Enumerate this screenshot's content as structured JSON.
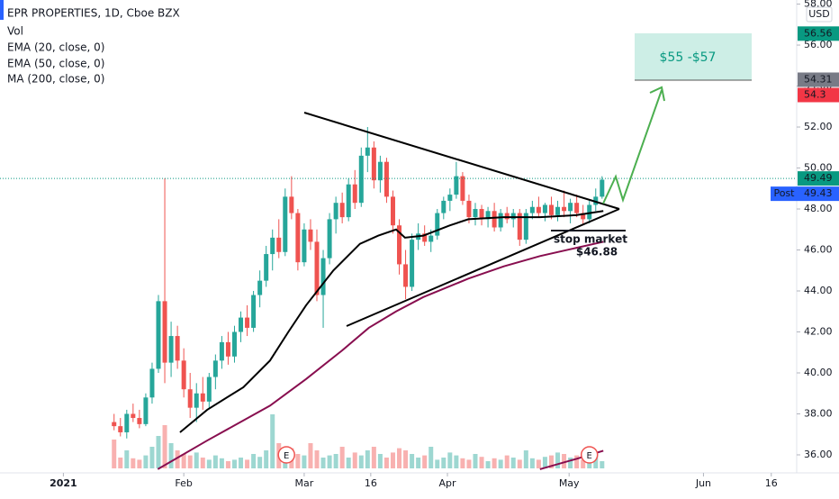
{
  "chart_data": {
    "type": "candlestick",
    "title": "EPR PROPERTIES, 1D, Cboe BZX",
    "volume_label": "Vol",
    "currency": "USD",
    "up_color": "#26a69a",
    "down_color": "#ef5350",
    "xlim": [
      0,
      125
    ],
    "xticks": [
      {
        "value": 10,
        "label": "2021"
      },
      {
        "value": 29,
        "label": "Feb"
      },
      {
        "value": 48,
        "label": "Mar"
      },
      {
        "value": 58.5,
        "label": "16"
      },
      {
        "value": 70.6,
        "label": "Apr"
      },
      {
        "value": 89.8,
        "label": "May"
      },
      {
        "value": 111,
        "label": "Jun"
      },
      {
        "value": 121.7,
        "label": "16"
      }
    ],
    "ylim": [
      35.12,
      58.2
    ],
    "yticks": [
      {
        "value": 36,
        "label": "36.00"
      },
      {
        "value": 38,
        "label": "38.00"
      },
      {
        "value": 40,
        "label": "40.00"
      },
      {
        "value": 42,
        "label": "42.00"
      },
      {
        "value": 44,
        "label": "44.00"
      },
      {
        "value": 46,
        "label": "46.00"
      },
      {
        "value": 48,
        "label": "48.00"
      },
      {
        "value": 50,
        "label": "50.00"
      },
      {
        "value": 52,
        "label": "52.00"
      },
      {
        "value": 54,
        "label": "54.00"
      },
      {
        "value": 56,
        "label": "56.00"
      },
      {
        "value": 58,
        "label": "58.00"
      }
    ],
    "x": [
      18,
      19,
      20,
      21,
      22,
      23,
      24,
      25,
      26,
      27,
      28,
      29,
      30,
      31,
      32,
      33,
      34,
      35,
      36,
      37,
      38,
      39,
      40,
      41,
      42,
      43,
      44,
      45,
      46,
      47,
      48,
      49,
      50,
      51,
      52,
      53,
      54,
      55,
      56,
      57,
      58,
      59,
      60,
      61,
      62,
      63,
      64,
      65,
      66,
      67,
      68,
      69,
      70,
      71,
      72,
      73,
      74,
      75,
      76,
      77,
      78,
      79,
      80,
      81,
      82,
      83,
      84,
      85,
      86,
      87,
      88,
      89,
      90,
      91,
      92,
      93,
      94,
      95
    ],
    "ohlc": [
      [
        37.6,
        38.0,
        37.2,
        37.4
      ],
      [
        37.4,
        37.8,
        36.9,
        37.1
      ],
      [
        37.1,
        38.2,
        36.8,
        38.0
      ],
      [
        38.0,
        38.5,
        37.6,
        37.8
      ],
      [
        37.8,
        38.2,
        37.3,
        37.5
      ],
      [
        37.5,
        39.0,
        37.4,
        38.8
      ],
      [
        38.8,
        40.5,
        38.5,
        40.2
      ],
      [
        40.2,
        43.8,
        40.0,
        43.5
      ],
      [
        43.5,
        49.5,
        39.5,
        40.5
      ],
      [
        40.5,
        42.5,
        39.8,
        41.8
      ],
      [
        41.8,
        42.3,
        40.2,
        40.6
      ],
      [
        40.6,
        41.2,
        38.8,
        39.2
      ],
      [
        39.2,
        40.0,
        37.8,
        38.3
      ],
      [
        38.3,
        39.5,
        37.6,
        39.0
      ],
      [
        39.0,
        39.8,
        38.2,
        38.6
      ],
      [
        38.6,
        40.0,
        38.3,
        39.8
      ],
      [
        39.8,
        40.9,
        39.2,
        40.6
      ],
      [
        40.6,
        41.8,
        40.2,
        41.5
      ],
      [
        41.5,
        42.0,
        40.4,
        40.8
      ],
      [
        40.8,
        42.3,
        40.5,
        42.0
      ],
      [
        42.0,
        43.0,
        41.5,
        42.7
      ],
      [
        42.7,
        43.3,
        41.8,
        42.2
      ],
      [
        42.2,
        44.0,
        42.0,
        43.8
      ],
      [
        43.8,
        45.0,
        43.2,
        44.5
      ],
      [
        44.5,
        46.2,
        44.2,
        45.8
      ],
      [
        45.8,
        47.0,
        45.0,
        46.6
      ],
      [
        46.6,
        47.5,
        45.6,
        45.9
      ],
      [
        45.9,
        49.0,
        45.7,
        48.6
      ],
      [
        48.6,
        49.6,
        47.5,
        47.8
      ],
      [
        47.8,
        48.0,
        45.0,
        45.4
      ],
      [
        45.4,
        47.3,
        45.2,
        47.0
      ],
      [
        47.0,
        47.5,
        46.0,
        46.4
      ],
      [
        46.4,
        47.0,
        43.5,
        43.8
      ],
      [
        43.8,
        46.0,
        42.2,
        45.6
      ],
      [
        45.6,
        47.8,
        45.3,
        47.5
      ],
      [
        47.5,
        48.6,
        46.8,
        48.3
      ],
      [
        48.3,
        48.8,
        47.3,
        47.6
      ],
      [
        47.6,
        49.5,
        47.4,
        49.2
      ],
      [
        49.2,
        49.9,
        48.0,
        48.3
      ],
      [
        48.3,
        51.0,
        48.1,
        50.6
      ],
      [
        50.6,
        52.0,
        49.8,
        51.0
      ],
      [
        51.0,
        51.3,
        49.0,
        49.4
      ],
      [
        49.4,
        50.6,
        48.8,
        50.3
      ],
      [
        50.3,
        50.5,
        48.3,
        48.6
      ],
      [
        48.6,
        48.9,
        46.8,
        47.2
      ],
      [
        47.2,
        47.5,
        44.8,
        45.3
      ],
      [
        45.3,
        46.0,
        43.6,
        44.2
      ],
      [
        44.2,
        46.8,
        44.0,
        46.5
      ],
      [
        46.5,
        47.3,
        46.0,
        46.8
      ],
      [
        46.8,
        47.2,
        46.2,
        46.4
      ],
      [
        46.4,
        47.0,
        45.9,
        46.7
      ],
      [
        46.7,
        48.0,
        46.5,
        47.8
      ],
      [
        47.8,
        48.6,
        47.5,
        48.4
      ],
      [
        48.4,
        49.0,
        47.9,
        48.7
      ],
      [
        48.7,
        50.3,
        48.5,
        49.6
      ],
      [
        49.6,
        49.8,
        48.2,
        48.4
      ],
      [
        48.4,
        48.7,
        47.3,
        47.6
      ],
      [
        47.6,
        48.3,
        47.2,
        48.0
      ],
      [
        48.0,
        48.2,
        47.2,
        47.5
      ],
      [
        47.5,
        48.1,
        47.1,
        47.9
      ],
      [
        47.9,
        48.3,
        46.9,
        47.1
      ],
      [
        47.1,
        48.0,
        46.9,
        47.8
      ],
      [
        47.8,
        48.1,
        47.3,
        47.5
      ],
      [
        47.5,
        48.0,
        47.1,
        47.8
      ],
      [
        47.8,
        48.0,
        46.2,
        46.5
      ],
      [
        46.5,
        48.0,
        46.3,
        47.8
      ],
      [
        47.8,
        48.4,
        47.5,
        48.1
      ],
      [
        48.1,
        48.6,
        47.6,
        47.8
      ],
      [
        47.8,
        48.3,
        47.4,
        48.2
      ],
      [
        48.2,
        48.6,
        47.5,
        47.7
      ],
      [
        47.7,
        48.4,
        47.4,
        48.1
      ],
      [
        48.1,
        48.9,
        47.6,
        47.9
      ],
      [
        47.9,
        48.5,
        47.3,
        48.3
      ],
      [
        48.3,
        48.7,
        47.6,
        47.8
      ],
      [
        47.8,
        48.2,
        47.2,
        47.5
      ],
      [
        47.5,
        48.4,
        47.3,
        48.2
      ],
      [
        48.2,
        49.0,
        47.9,
        48.6
      ],
      [
        48.6,
        49.6,
        48.5,
        49.43
      ]
    ],
    "volume_lim": [
      0,
      100
    ],
    "volume": [
      40,
      15,
      25,
      14,
      12,
      18,
      30,
      45,
      60,
      35,
      25,
      20,
      18,
      22,
      15,
      12,
      18,
      14,
      10,
      12,
      15,
      12,
      20,
      16,
      25,
      75,
      35,
      22,
      28,
      20,
      18,
      35,
      25,
      15,
      18,
      20,
      30,
      15,
      22,
      18,
      25,
      30,
      20,
      15,
      22,
      28,
      25,
      20,
      15,
      18,
      30,
      12,
      15,
      22,
      18,
      14,
      12,
      20,
      16,
      10,
      14,
      12,
      18,
      15,
      12,
      25,
      14,
      12,
      16,
      18,
      22,
      20,
      15,
      18,
      12,
      16,
      20,
      10
    ],
    "indicators": [
      {
        "name": "EMA (20, close, 0)",
        "color": "#000000",
        "x": [
          28.4,
          32.7,
          38.4,
          42.6,
          45.5,
          48.3,
          52.6,
          56.8,
          59.7,
          62.5,
          63.9,
          66.8,
          71,
          73.9,
          79.5,
          85.2,
          90.9,
          95.2
        ],
        "values": [
          37.1,
          38.2,
          39.3,
          40.6,
          42,
          43.3,
          45,
          46.3,
          46.7,
          47,
          46.6,
          46.7,
          47.2,
          47.5,
          47.6,
          47.6,
          47.7,
          47.9
        ]
      },
      {
        "name": "EMA (50, close, 0)",
        "color": "#880e4f",
        "x": [
          24.9,
          32.7,
          42.6,
          48.3,
          54,
          58.2,
          62.5,
          66.8,
          73.9,
          79.5,
          85.2,
          90.9,
          95.2
        ],
        "values": [
          35.3,
          36.7,
          38.4,
          39.7,
          41.1,
          42.2,
          43,
          43.7,
          44.6,
          45.2,
          45.7,
          46.1,
          46.4
        ]
      },
      {
        "name": "MA (200, close, 0)",
        "color": "#880e4f",
        "x": [
          85.2,
          90.9,
          95.2
        ],
        "values": [
          35.3,
          35.8,
          36.2
        ]
      }
    ],
    "price_labels": [
      {
        "value": 56.56,
        "color": "#089981"
      },
      {
        "value": 54.31,
        "color": "#787b86"
      },
      {
        "value": 54.3,
        "color": "#f23645"
      },
      {
        "value": 49.49,
        "color": "#089981",
        "dotted": true
      },
      {
        "value": 49.43,
        "tag": "Post",
        "color": "#2962ff"
      }
    ],
    "earnings": [
      {
        "x": 45.2,
        "label": "E"
      },
      {
        "x": 93,
        "label": "E"
      }
    ],
    "target_label": "$55 -$57",
    "stop_label": "stop market",
    "stop_price_label": "$46.88"
  }
}
